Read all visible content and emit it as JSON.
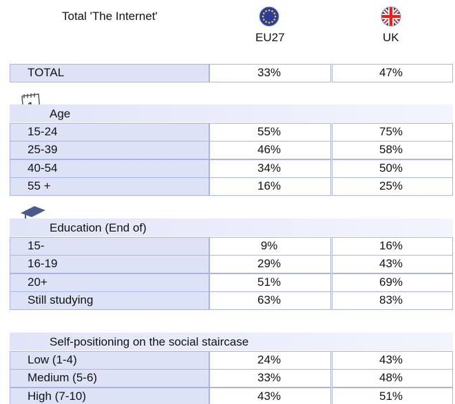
{
  "header": {
    "title": "Total 'The Internet'",
    "columns": [
      "EU27",
      "UK"
    ]
  },
  "total": {
    "label": "TOTAL",
    "values": [
      "33%",
      "47%"
    ]
  },
  "sections": [
    {
      "title": "Age",
      "rows": [
        {
          "label": "15-24",
          "values": [
            "55%",
            "75%"
          ]
        },
        {
          "label": "25-39",
          "values": [
            "46%",
            "58%"
          ]
        },
        {
          "label": "40-54",
          "values": [
            "34%",
            "50%"
          ]
        },
        {
          "label": "55 +",
          "values": [
            "16%",
            "25%"
          ]
        }
      ]
    },
    {
      "title": "Education (End of)",
      "rows": [
        {
          "label": "15-",
          "values": [
            "9%",
            "16%"
          ]
        },
        {
          "label": "16-19",
          "values": [
            "29%",
            "43%"
          ]
        },
        {
          "label": "20+",
          "values": [
            "51%",
            "69%"
          ]
        },
        {
          "label": "Still studying",
          "values": [
            "63%",
            "83%"
          ]
        }
      ]
    },
    {
      "title": "Self-positioning on the social staircase",
      "rows": [
        {
          "label": "Low (1-4)",
          "values": [
            "24%",
            "43%"
          ]
        },
        {
          "label": "Medium (5-6)",
          "values": [
            "33%",
            "48%"
          ]
        },
        {
          "label": "High (7-10)",
          "values": [
            "43%",
            "51%"
          ]
        }
      ]
    }
  ]
}
